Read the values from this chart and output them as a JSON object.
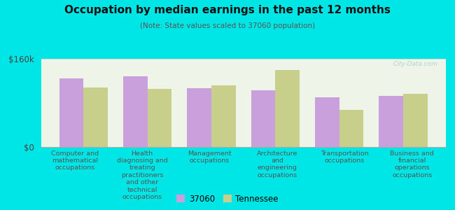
{
  "title": "Occupation by median earnings in the past 12 months",
  "subtitle": "(Note: State values scaled to 37060 population)",
  "categories": [
    "Computer and\nmathematical\noccupations",
    "Health\ndiagnosing and\ntreating\npractitioners\nand other\ntechnical\noccupations",
    "Management\noccupations",
    "Architecture\nand\nengineering\noccupations",
    "Transportation\noccupations",
    "Business and\nfinancial\noperations\noccupations"
  ],
  "values_37060": [
    125000,
    128000,
    107000,
    103000,
    90000,
    93000
  ],
  "values_tennessee": [
    108000,
    105000,
    112000,
    140000,
    67000,
    97000
  ],
  "color_37060": "#c9a0dc",
  "color_tennessee": "#c8cf8a",
  "ylim": [
    0,
    160000
  ],
  "ytick_labels": [
    "$0",
    "$160k"
  ],
  "legend_label_37060": "37060",
  "legend_label_tennessee": "Tennessee",
  "bg_color": "#00e5e5",
  "plot_bg_color": "#eef5e8",
  "bar_width": 0.38,
  "watermark": "City-Data.com"
}
